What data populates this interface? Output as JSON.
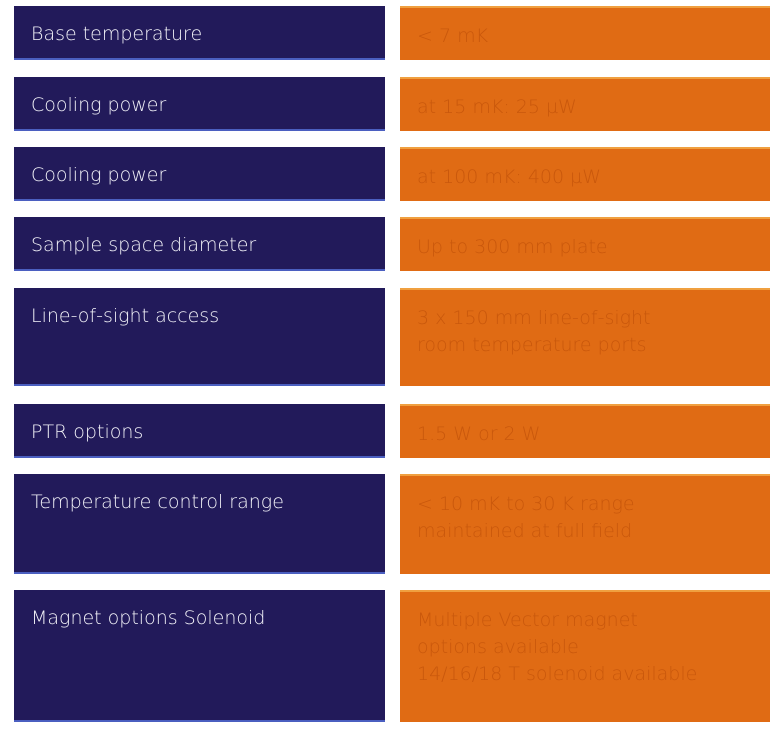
{
  "table": {
    "rows": [
      {
        "label": "Base temperature",
        "value": [
          "< 7 mK"
        ]
      },
      {
        "label": "Cooling power",
        "value": [
          "at 15 mK: 25 µW"
        ]
      },
      {
        "label": "Cooling power",
        "value": [
          "at 100 mK: 400 µW"
        ]
      },
      {
        "label": "Sample space diameter",
        "value": [
          "Up to 300 mm plate"
        ]
      },
      {
        "label": "Line-of-sight access",
        "value": [
          "3 x 150 mm line-of-sight",
          "room temperature ports"
        ]
      },
      {
        "label": "PTR options",
        "value": [
          "1.5 W or 2 W"
        ]
      },
      {
        "label": "Temperature control range",
        "value": [
          "< 10 mK to 30 K range",
          "maintained at full field"
        ]
      },
      {
        "label": "Magnet options Solenoid",
        "value": [
          "Multiple Vector magnet",
          "options available",
          "14/16/18 T solenoid available"
        ]
      }
    ]
  }
}
